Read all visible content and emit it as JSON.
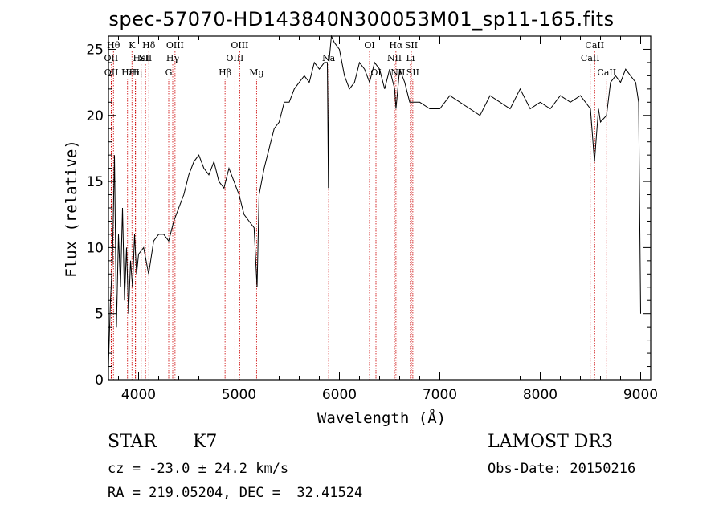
{
  "chart_data": {
    "type": "line",
    "title": "spec-57070-HD143840N300053M01_sp11-165.fits",
    "xlabel": "Wavelength (Å)",
    "ylabel": "Flux (relative)",
    "xlim": [
      3700,
      9100
    ],
    "ylim": [
      0,
      26
    ],
    "xticks": [
      4000,
      5000,
      6000,
      7000,
      8000,
      9000
    ],
    "yticks": [
      0,
      5,
      10,
      15,
      20,
      25
    ],
    "grid": false,
    "series": [
      {
        "x": [
          3700,
          3720,
          3740,
          3760,
          3780,
          3800,
          3820,
          3840,
          3860,
          3880,
          3900,
          3920,
          3940,
          3960,
          3980,
          4000,
          4050,
          4100,
          4150,
          4200,
          4250,
          4300,
          4350,
          4400,
          4450,
          4500,
          4550,
          4600,
          4650,
          4700,
          4750,
          4800,
          4850,
          4900,
          4950,
          5000,
          5050,
          5100,
          5150,
          5180,
          5200,
          5250,
          5300,
          5350,
          5400,
          5450,
          5500,
          5550,
          5600,
          5650,
          5700,
          5750,
          5800,
          5850,
          5880,
          5890,
          5896,
          5920,
          5950,
          6000,
          6050,
          6100,
          6150,
          6200,
          6250,
          6300,
          6350,
          6400,
          6450,
          6500,
          6550,
          6563,
          6600,
          6650,
          6700,
          6750,
          6800,
          6900,
          7000,
          7100,
          7200,
          7300,
          7400,
          7500,
          7600,
          7700,
          7800,
          7900,
          8000,
          8100,
          8200,
          8300,
          8400,
          8450,
          8500,
          8540,
          8580,
          8600,
          8660,
          8700,
          8750,
          8800,
          8850,
          8900,
          8950,
          8980,
          9000
        ],
        "y": [
          1,
          6,
          9,
          17,
          4,
          11,
          7,
          13,
          6,
          10,
          5,
          9,
          7,
          11,
          8,
          9.5,
          10,
          8,
          10.5,
          11,
          11,
          10.5,
          12,
          13,
          14,
          15.5,
          16.5,
          17,
          16,
          15.5,
          16.5,
          15,
          14.5,
          16,
          15,
          14,
          12.5,
          12,
          11.5,
          7,
          14,
          16,
          17.5,
          19,
          19.5,
          21,
          21,
          22,
          22.5,
          23,
          22.5,
          24,
          23.5,
          24,
          24,
          14.5,
          24,
          26,
          25.5,
          25,
          23,
          22,
          22.5,
          24,
          23.5,
          22.5,
          24,
          23.5,
          22,
          23.5,
          22,
          20.5,
          23.5,
          22.5,
          21,
          21,
          21,
          20.5,
          20.5,
          21.5,
          21,
          20.5,
          20,
          21.5,
          21,
          20.5,
          22,
          20.5,
          21,
          20.5,
          21.5,
          21,
          21.5,
          21,
          20.5,
          16.5,
          20.5,
          19.5,
          20,
          22.5,
          23,
          22.5,
          23.5,
          23,
          22.5,
          21,
          5
        ]
      }
    ],
    "line_markers": [
      {
        "wl": 3750,
        "label": "Hθ",
        "row": 0
      },
      {
        "wl": 3727,
        "label": "OII",
        "row": 1
      },
      {
        "wl": 3729,
        "label": "OII",
        "row": 2
      },
      {
        "wl": 3890,
        "label": "Hε",
        "row": 2
      },
      {
        "wl": 3934,
        "label": "K",
        "row": 0
      },
      {
        "wl": 3968,
        "label": "H",
        "row": 2
      },
      {
        "wl": 3970,
        "label": "Hη",
        "row": 2
      },
      {
        "wl": 4026,
        "label": "HeI",
        "row": 1
      },
      {
        "wl": 4069,
        "label": "SII",
        "row": 1
      },
      {
        "wl": 4102,
        "label": "Hδ",
        "row": 0
      },
      {
        "wl": 4300,
        "label": "G",
        "row": 2
      },
      {
        "wl": 4340,
        "label": "Hγ",
        "row": 1
      },
      {
        "wl": 4363,
        "label": "OIII",
        "row": 0
      },
      {
        "wl": 4861,
        "label": "Hβ",
        "row": 2
      },
      {
        "wl": 4959,
        "label": "OIII",
        "row": 1
      },
      {
        "wl": 5007,
        "label": "OIII",
        "row": 0
      },
      {
        "wl": 5175,
        "label": "Mg",
        "row": 2
      },
      {
        "wl": 5893,
        "label": "Na",
        "row": 1
      },
      {
        "wl": 6300,
        "label": "OI",
        "row": 0
      },
      {
        "wl": 6364,
        "label": "OI",
        "row": 2
      },
      {
        "wl": 6548,
        "label": "NII",
        "row": 1
      },
      {
        "wl": 6563,
        "label": "Hα",
        "row": 0
      },
      {
        "wl": 6583,
        "label": "NII",
        "row": 2
      },
      {
        "wl": 6707,
        "label": "Li",
        "row": 1
      },
      {
        "wl": 6716,
        "label": "SII",
        "row": 0
      },
      {
        "wl": 6731,
        "label": "SII",
        "row": 2
      },
      {
        "wl": 8498,
        "label": "CaII",
        "row": 1
      },
      {
        "wl": 8542,
        "label": "CaII",
        "row": 0
      },
      {
        "wl": 8662,
        "label": "CaII",
        "row": 2
      }
    ]
  },
  "info": {
    "class_label": "STAR",
    "subclass": "K7",
    "survey": "LAMOST DR3",
    "cz": "cz = -23.0 ± 24.2 km/s",
    "obs_date": "Obs-Date: 20150216",
    "radec": "RA = 219.05204, DEC =  32.41524"
  },
  "colors": {
    "spectrum": "#000000",
    "line_marker": "#cc0000",
    "axes": "#000000"
  }
}
